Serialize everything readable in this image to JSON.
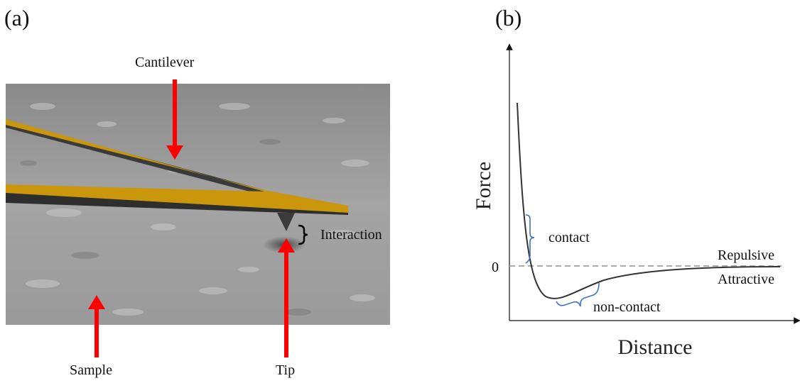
{
  "panel_a": {
    "label": "(a)",
    "cantilever": "Cantilever",
    "interaction": "Interaction",
    "sample": "Sample",
    "tip": "Tip"
  },
  "panel_b": {
    "label": "(b)",
    "y_axis_label": "Force",
    "x_axis_label": "Distance",
    "zero_label": "0",
    "repulsive": "Repulsive",
    "attractive": "Attractive",
    "contact": "contact",
    "non_contact": "non-contact"
  }
}
